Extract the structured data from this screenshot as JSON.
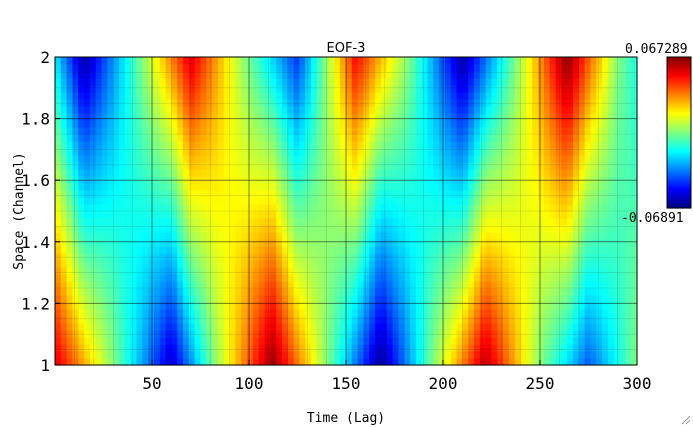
{
  "chart_data": {
    "type": "heatmap",
    "title": "EOF-3",
    "xlabel": "Time (Lag)",
    "ylabel": "Space (Channel)",
    "xlim": [
      0,
      300
    ],
    "ylim": [
      1,
      2
    ],
    "x_ticks": [
      "50",
      "100",
      "150",
      "200",
      "250",
      "300"
    ],
    "y_ticks": [
      "1",
      "1.2",
      "1.4",
      "1.6",
      "1.8",
      "2"
    ],
    "colorbar": {
      "max_label": "0.067289",
      "min_label": "-0.06891",
      "max": 0.067289,
      "min": -0.06891,
      "colormap": "jet"
    },
    "grid": true,
    "rows": [
      {
        "channel": 1,
        "lag": [
          0,
          30,
          60,
          82,
          112,
          140,
          168,
          195,
          222,
          250,
          275,
          300
        ],
        "values": [
          0.055,
          0.0,
          -0.06,
          0.0,
          0.065,
          0.0,
          -0.067,
          0.0,
          0.06,
          0.0,
          -0.04,
          0.0
        ]
      },
      {
        "channel": 2,
        "lag": [
          0,
          15,
          45,
          70,
          98,
          125,
          155,
          182,
          210,
          238,
          264,
          290,
          300
        ],
        "values": [
          -0.02,
          -0.065,
          0.0,
          0.055,
          0.0,
          -0.045,
          0.05,
          0.0,
          -0.065,
          0.0,
          0.067,
          0.0,
          -0.015
        ]
      }
    ]
  }
}
